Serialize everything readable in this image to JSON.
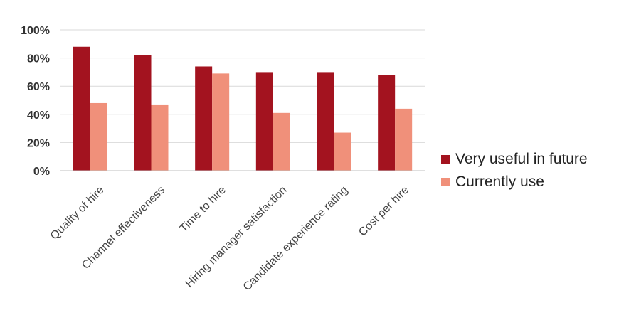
{
  "chart_data": {
    "type": "bar",
    "categories": [
      "Quality of hire",
      "Channel effectiveness",
      "Time to hire",
      "Hiring manager satisfaction",
      "Candidate experience rating",
      "Cost per hire"
    ],
    "series": [
      {
        "name": "Very useful in future",
        "values": [
          88,
          82,
          74,
          70,
          70,
          68
        ],
        "color": "#A3131F"
      },
      {
        "name": "Currently use",
        "values": [
          48,
          47,
          69,
          41,
          27,
          44
        ],
        "color": "#F0907A"
      }
    ],
    "yticks": [
      "0%",
      "20%",
      "40%",
      "60%",
      "80%",
      "100%"
    ],
    "ylim": [
      0,
      100
    ],
    "grid": true,
    "legend_position": "right"
  }
}
